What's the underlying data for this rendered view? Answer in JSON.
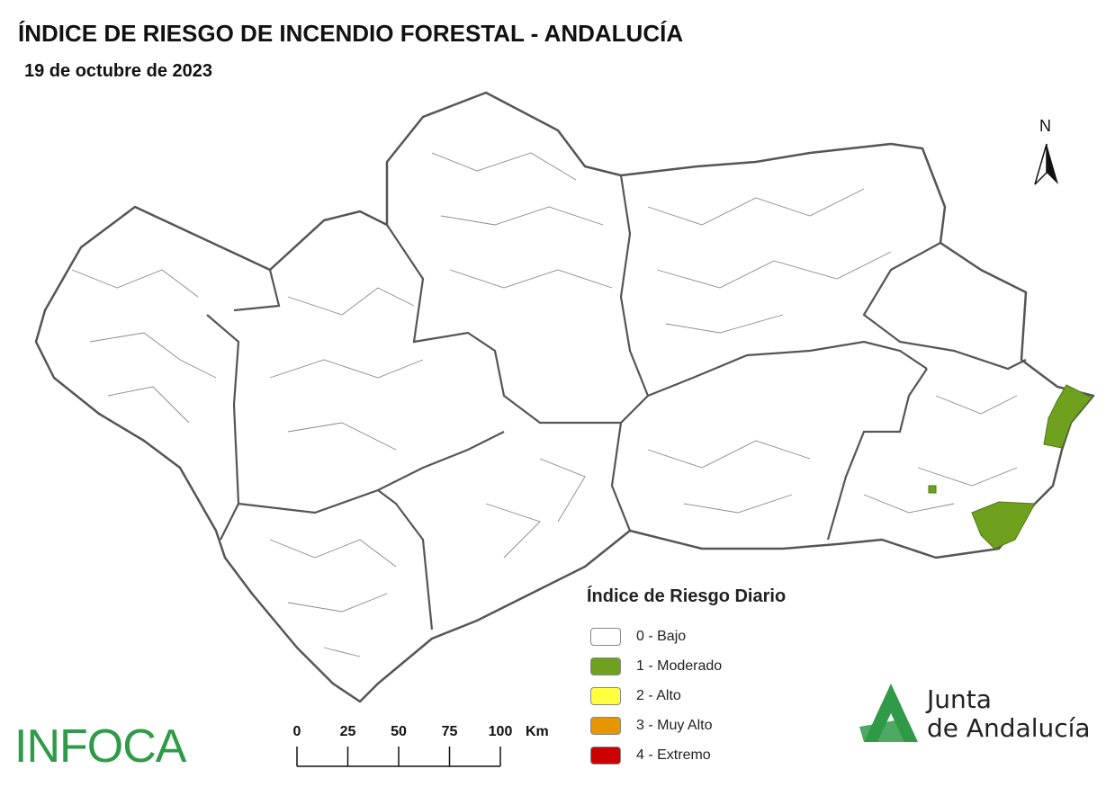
{
  "header": {
    "title": "ÍNDICE DE RIESGO DE INCENDIO FORESTAL - ANDALUCÍA",
    "subtitle": "19 de octubre de 2023"
  },
  "north": "N",
  "legend": {
    "title": "Índice de Riesgo Diario",
    "items": [
      {
        "label": "0 - Bajo",
        "color": "#ffffff"
      },
      {
        "label": "1 - Moderado",
        "color": "#6fa11f"
      },
      {
        "label": "2 - Alto",
        "color": "#ffff40"
      },
      {
        "label": "3 - Muy Alto",
        "color": "#e69600"
      },
      {
        "label": "4 - Extremo",
        "color": "#cc0000"
      }
    ]
  },
  "scale_bar": {
    "ticks": [
      0,
      25,
      50,
      75,
      100
    ],
    "unit": "Km"
  },
  "logos": {
    "left": "INFOCA",
    "right": [
      "Junta",
      "de Andalucía"
    ]
  }
}
